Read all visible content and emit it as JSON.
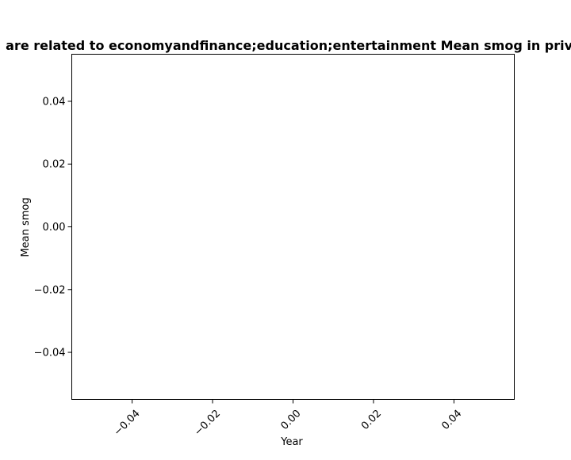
{
  "chart_data": {
    "type": "line",
    "title": "are related to economyandfinance;education;entertainment Mean smog in priva",
    "xlabel": "Year",
    "ylabel": "Mean smog",
    "xlim": [
      -0.055,
      0.055
    ],
    "ylim": [
      -0.055,
      0.055
    ],
    "x_ticks": [
      -0.04,
      -0.02,
      0.0,
      0.02,
      0.04
    ],
    "x_tick_labels": [
      "−0.04",
      "−0.02",
      "0.00",
      "0.02",
      "0.04"
    ],
    "y_ticks": [
      -0.04,
      -0.02,
      0.0,
      0.02,
      0.04
    ],
    "y_tick_labels": [
      "−0.04",
      "−0.02",
      "0.00",
      "0.02",
      "0.04"
    ],
    "x_tick_rotation": 45,
    "grid": false,
    "series": []
  }
}
